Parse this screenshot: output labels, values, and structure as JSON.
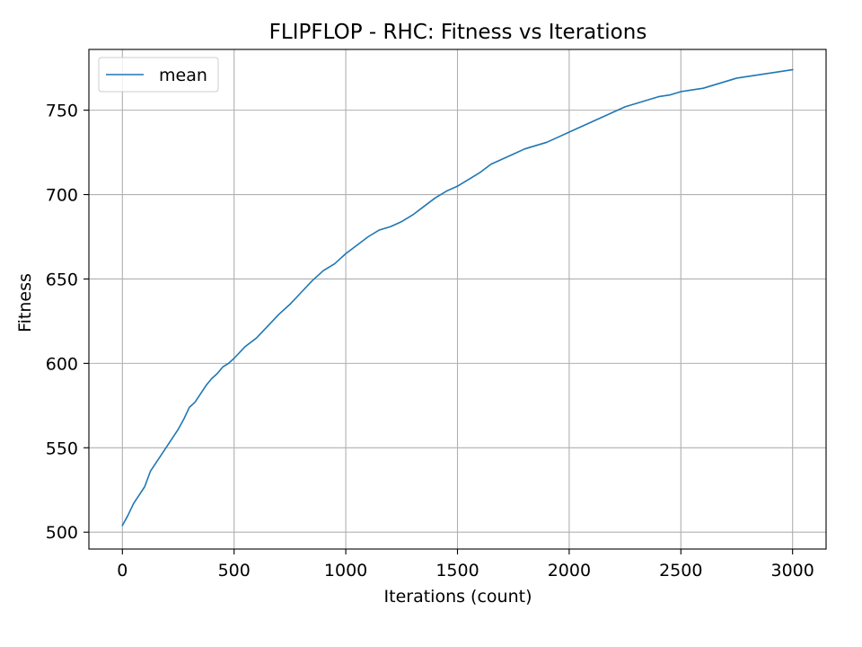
{
  "chart_data": {
    "type": "line",
    "title": "FLIPFLOP - RHC: Fitness vs Iterations",
    "xlabel": "Iterations (count)",
    "ylabel": "Fitness",
    "xlim": [
      -150,
      3150
    ],
    "ylim": [
      490,
      786
    ],
    "xticks": [
      0,
      500,
      1000,
      1500,
      2000,
      2500,
      3000
    ],
    "xtick_labels": [
      "0",
      "500",
      "1000",
      "1500",
      "2000",
      "2500",
      "3000"
    ],
    "yticks": [
      500,
      550,
      600,
      650,
      700,
      750
    ],
    "ytick_labels": [
      "500",
      "550",
      "600",
      "650",
      "700",
      "750"
    ],
    "grid": true,
    "legend": {
      "position": "top-left",
      "entries": [
        "mean"
      ]
    },
    "series": [
      {
        "name": "mean",
        "color": "#1f77b4",
        "x": [
          0,
          25,
          50,
          75,
          100,
          125,
          150,
          175,
          200,
          225,
          250,
          275,
          300,
          325,
          350,
          375,
          400,
          425,
          450,
          475,
          500,
          550,
          600,
          650,
          700,
          750,
          800,
          850,
          900,
          950,
          1000,
          1050,
          1100,
          1150,
          1200,
          1250,
          1300,
          1350,
          1400,
          1450,
          1500,
          1550,
          1600,
          1650,
          1700,
          1750,
          1800,
          1850,
          1900,
          1950,
          2000,
          2050,
          2100,
          2150,
          2200,
          2250,
          2300,
          2350,
          2400,
          2450,
          2500,
          2550,
          2600,
          2650,
          2700,
          2750,
          2800,
          2850,
          2900,
          2950,
          3000
        ],
        "y": [
          504,
          510,
          517,
          522,
          527,
          536,
          541,
          546,
          551,
          556,
          561,
          567,
          574,
          577,
          582,
          587,
          591,
          594,
          598,
          600,
          603,
          610,
          615,
          622,
          629,
          635,
          642,
          649,
          655,
          659,
          665,
          670,
          675,
          679,
          681,
          684,
          688,
          693,
          698,
          702,
          705,
          709,
          713,
          718,
          721,
          724,
          727,
          729,
          731,
          734,
          737,
          740,
          743,
          746,
          749,
          752,
          754,
          756,
          758,
          759,
          761,
          762,
          763,
          765,
          767,
          769,
          770,
          771,
          772,
          773,
          774
        ]
      }
    ]
  }
}
